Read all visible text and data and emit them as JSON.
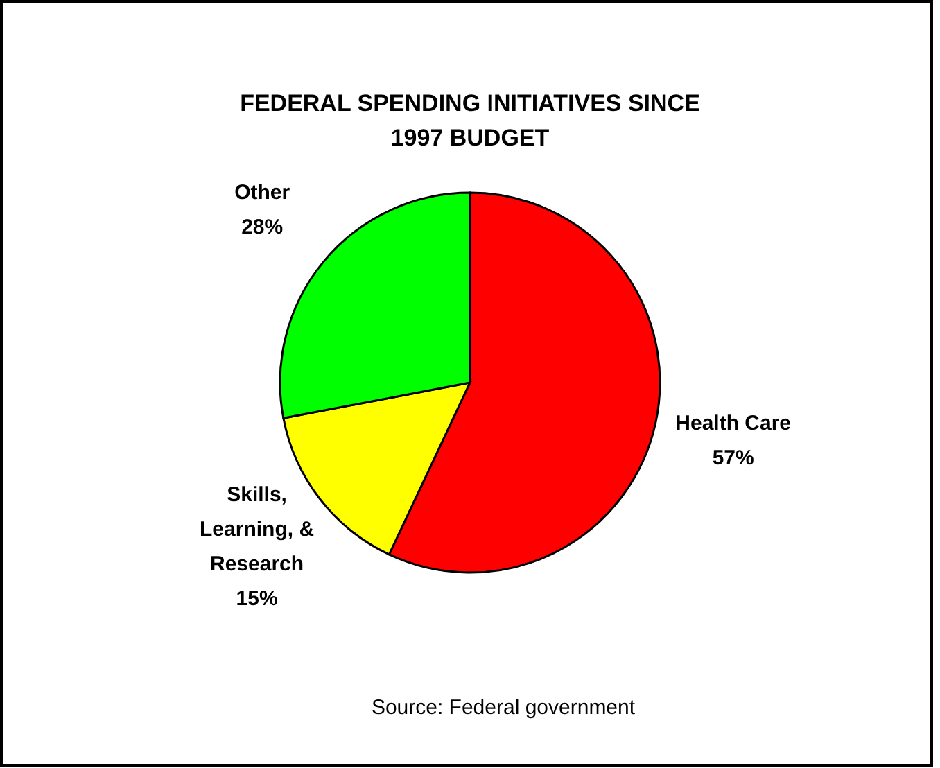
{
  "chart_data": {
    "type": "pie",
    "title": "FEDERAL SPENDING INITIATIVES SINCE 1997 BUDGET",
    "categories": [
      "Health Care",
      "Skills, Learning, & Research",
      "Other"
    ],
    "values": [
      57,
      15,
      28
    ],
    "colors": [
      "#ff0000",
      "#ffff00",
      "#00ff00"
    ],
    "value_labels": [
      "57%",
      "15%",
      "28%"
    ],
    "annotations": [
      "Source: Federal government"
    ]
  }
}
